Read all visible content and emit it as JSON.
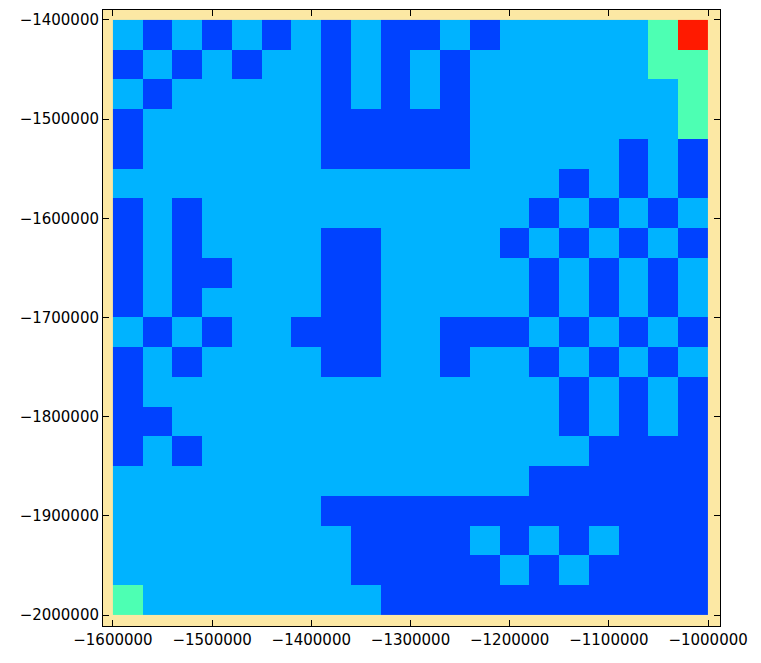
{
  "chart_data": {
    "type": "heatmap",
    "x": [
      -1585000,
      -1555000,
      -1525000,
      -1495000,
      -1465000,
      -1435000,
      -1405000,
      -1375000,
      -1345000,
      -1315000,
      -1285000,
      -1255000,
      -1225000,
      -1195000,
      -1165000,
      -1135000,
      -1105000,
      -1075000,
      -1045000,
      -1015000
    ],
    "y": [
      -1985000,
      -1955000,
      -1925000,
      -1895000,
      -1865000,
      -1835000,
      -1805000,
      -1775000,
      -1745000,
      -1715000,
      -1685000,
      -1655000,
      -1625000,
      -1595000,
      -1565000,
      -1535000,
      -1505000,
      -1475000,
      -1445000,
      -1415000
    ],
    "z": [
      [
        0.45,
        0.3,
        0.3,
        0.3,
        0.3,
        0.3,
        0.3,
        0.3,
        0.3,
        0.19,
        0.19,
        0.19,
        0.19,
        0.19,
        0.19,
        0.19,
        0.19,
        0.19,
        0.19,
        0.19
      ],
      [
        0.3,
        0.3,
        0.3,
        0.3,
        0.3,
        0.3,
        0.3,
        0.3,
        0.19,
        0.19,
        0.19,
        0.19,
        0.19,
        0.3,
        0.19,
        0.3,
        0.19,
        0.19,
        0.19,
        0.19
      ],
      [
        0.3,
        0.3,
        0.3,
        0.3,
        0.3,
        0.3,
        0.3,
        0.3,
        0.19,
        0.19,
        0.19,
        0.19,
        0.3,
        0.19,
        0.3,
        0.19,
        0.3,
        0.19,
        0.19,
        0.19
      ],
      [
        0.3,
        0.3,
        0.3,
        0.3,
        0.3,
        0.3,
        0.3,
        0.19,
        0.19,
        0.19,
        0.19,
        0.19,
        0.19,
        0.19,
        0.19,
        0.19,
        0.19,
        0.19,
        0.19,
        0.19
      ],
      [
        0.3,
        0.3,
        0.3,
        0.3,
        0.3,
        0.3,
        0.3,
        0.3,
        0.3,
        0.3,
        0.3,
        0.3,
        0.3,
        0.3,
        0.19,
        0.19,
        0.19,
        0.19,
        0.19,
        0.19
      ],
      [
        0.19,
        0.3,
        0.19,
        0.3,
        0.3,
        0.3,
        0.3,
        0.3,
        0.3,
        0.3,
        0.3,
        0.3,
        0.3,
        0.3,
        0.3,
        0.3,
        0.19,
        0.19,
        0.19,
        0.19
      ],
      [
        0.19,
        0.19,
        0.3,
        0.3,
        0.3,
        0.3,
        0.3,
        0.3,
        0.3,
        0.3,
        0.3,
        0.3,
        0.3,
        0.3,
        0.3,
        0.19,
        0.3,
        0.19,
        0.3,
        0.19
      ],
      [
        0.19,
        0.3,
        0.3,
        0.3,
        0.3,
        0.3,
        0.3,
        0.3,
        0.3,
        0.3,
        0.3,
        0.3,
        0.3,
        0.3,
        0.3,
        0.19,
        0.3,
        0.19,
        0.3,
        0.19
      ],
      [
        0.19,
        0.3,
        0.19,
        0.3,
        0.3,
        0.3,
        0.3,
        0.19,
        0.19,
        0.3,
        0.3,
        0.19,
        0.3,
        0.3,
        0.19,
        0.3,
        0.19,
        0.3,
        0.19,
        0.3
      ],
      [
        0.3,
        0.19,
        0.3,
        0.19,
        0.3,
        0.3,
        0.19,
        0.19,
        0.19,
        0.3,
        0.3,
        0.19,
        0.19,
        0.19,
        0.3,
        0.19,
        0.3,
        0.19,
        0.3,
        0.19
      ],
      [
        0.19,
        0.3,
        0.19,
        0.3,
        0.3,
        0.3,
        0.3,
        0.19,
        0.19,
        0.3,
        0.3,
        0.3,
        0.3,
        0.3,
        0.19,
        0.3,
        0.19,
        0.3,
        0.19,
        0.3
      ],
      [
        0.19,
        0.3,
        0.19,
        0.19,
        0.3,
        0.3,
        0.3,
        0.19,
        0.19,
        0.3,
        0.3,
        0.3,
        0.3,
        0.3,
        0.19,
        0.3,
        0.19,
        0.3,
        0.19,
        0.3
      ],
      [
        0.19,
        0.3,
        0.19,
        0.3,
        0.3,
        0.3,
        0.3,
        0.19,
        0.19,
        0.3,
        0.3,
        0.3,
        0.3,
        0.19,
        0.3,
        0.19,
        0.3,
        0.19,
        0.3,
        0.19
      ],
      [
        0.19,
        0.3,
        0.19,
        0.3,
        0.3,
        0.3,
        0.3,
        0.3,
        0.3,
        0.3,
        0.3,
        0.3,
        0.3,
        0.3,
        0.19,
        0.3,
        0.19,
        0.3,
        0.19,
        0.3
      ],
      [
        0.3,
        0.3,
        0.3,
        0.3,
        0.3,
        0.3,
        0.3,
        0.3,
        0.3,
        0.3,
        0.3,
        0.3,
        0.3,
        0.3,
        0.3,
        0.19,
        0.3,
        0.19,
        0.3,
        0.19
      ],
      [
        0.19,
        0.3,
        0.3,
        0.3,
        0.3,
        0.3,
        0.3,
        0.19,
        0.19,
        0.19,
        0.19,
        0.19,
        0.3,
        0.3,
        0.3,
        0.3,
        0.3,
        0.19,
        0.3,
        0.19
      ],
      [
        0.19,
        0.3,
        0.3,
        0.3,
        0.3,
        0.3,
        0.3,
        0.19,
        0.19,
        0.19,
        0.19,
        0.19,
        0.3,
        0.3,
        0.3,
        0.3,
        0.3,
        0.3,
        0.3,
        0.45
      ],
      [
        0.3,
        0.19,
        0.3,
        0.3,
        0.3,
        0.3,
        0.3,
        0.19,
        0.3,
        0.19,
        0.3,
        0.19,
        0.3,
        0.3,
        0.3,
        0.3,
        0.3,
        0.3,
        0.3,
        0.45
      ],
      [
        0.19,
        0.3,
        0.19,
        0.3,
        0.19,
        0.3,
        0.3,
        0.19,
        0.3,
        0.19,
        0.3,
        0.19,
        0.3,
        0.3,
        0.3,
        0.3,
        0.3,
        0.3,
        0.45,
        0.45
      ],
      [
        0.3,
        0.19,
        0.3,
        0.19,
        0.3,
        0.19,
        0.3,
        0.19,
        0.3,
        0.19,
        0.19,
        0.3,
        0.19,
        0.3,
        0.3,
        0.3,
        0.3,
        0.3,
        0.45,
        0.85
      ]
    ],
    "zlim": [
      0,
      1
    ],
    "xlim": [
      -1610000,
      -988000
    ],
    "ylim": [
      -2011000,
      -1390000
    ],
    "xticks": [
      {
        "value": -1600000,
        "label": "−1600000"
      },
      {
        "value": -1500000,
        "label": "−1500000"
      },
      {
        "value": -1400000,
        "label": "−1400000"
      },
      {
        "value": -1300000,
        "label": "−1300000"
      },
      {
        "value": -1200000,
        "label": "−1200000"
      },
      {
        "value": -1100000,
        "label": "−1100000"
      },
      {
        "value": -1000000,
        "label": "−1000000"
      }
    ],
    "yticks": [
      {
        "value": -2000000,
        "label": "−2000000"
      },
      {
        "value": -1900000,
        "label": "−1900000"
      },
      {
        "value": -1800000,
        "label": "−1800000"
      },
      {
        "value": -1700000,
        "label": "−1700000"
      },
      {
        "value": -1600000,
        "label": "−1600000"
      },
      {
        "value": -1500000,
        "label": "−1500000"
      },
      {
        "value": -1400000,
        "label": "−1400000"
      }
    ],
    "grid": false
  }
}
